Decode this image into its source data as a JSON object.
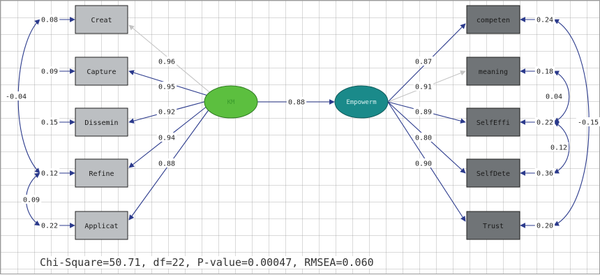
{
  "diagram": {
    "latent": [
      {
        "id": "km",
        "label": "KM",
        "fill": "#5cbf3f",
        "text_color": "#3a9b2c"
      },
      {
        "id": "emp",
        "label": "Empowerm",
        "fill": "#1a8a8a",
        "text_color": "#d8f0f0"
      }
    ],
    "structural_path": {
      "label": "0.88"
    },
    "left_indicators": [
      {
        "label": "Creat",
        "loading": "0.96",
        "error": "0.08"
      },
      {
        "label": "Capture",
        "loading": "0.95",
        "error": "0.09"
      },
      {
        "label": "Dissemin",
        "loading": "0.92",
        "error": "0.15"
      },
      {
        "label": "Refine",
        "loading": "0.94",
        "error": "0.12"
      },
      {
        "label": "Applicat",
        "loading": "0.88",
        "error": "0.22"
      }
    ],
    "right_indicators": [
      {
        "label": "competen",
        "loading": "0.87",
        "error": "0.24"
      },
      {
        "label": "meaning",
        "loading": "0.91",
        "error": "0.18"
      },
      {
        "label": "SelfEffi",
        "loading": "0.89",
        "error": "0.22"
      },
      {
        "label": "SelfDete",
        "loading": "0.80",
        "error": "0.36"
      },
      {
        "label": "Trust",
        "loading": "0.90",
        "error": "0.20"
      }
    ],
    "left_covariances": [
      {
        "label": "-0.04"
      },
      {
        "label": "0.09"
      }
    ],
    "right_covariances": [
      {
        "label": "0.04"
      },
      {
        "label": "0.12"
      },
      {
        "label": "-0.15"
      }
    ],
    "colors": {
      "arrow": "#2b3a8c",
      "arrow_faded": "#c4c4c4",
      "left_box": "#bcbfc2",
      "right_box": "#707477"
    }
  },
  "footer": {
    "fit_stats": "Chi-Square=50.71, df=22, P-value=0.00047, RMSEA=0.060"
  }
}
